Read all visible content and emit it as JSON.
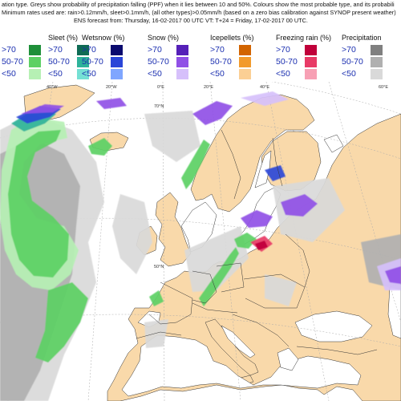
{
  "header": {
    "line1": "ation type. Greys show probability of precipitation falling (PPF) when it lies between 10 and 50%. Colours show the most probable type, and its probabili",
    "line2": "Minimum rates used are: rain>0.12mm/h, sleet>0.1mm/h, (all other types)>0.05mm/h (based on a zero bias calibration against SYNOP present weather)",
    "line3": "ENS forecast from: Thursday, 16-02-2017 00 UTC          VT: T+24 = Friday, 17-02-2017  00 UTC."
  },
  "legend": [
    {
      "title": "",
      "labels": [
        ">70",
        "50-70",
        "<50"
      ],
      "colors": [
        "#1e8f39",
        "#5cd064",
        "#b6f0b4"
      ]
    },
    {
      "title": "Sleet (%)",
      "labels": [
        ">70",
        "50-70",
        "<50"
      ],
      "colors": [
        "#0f6b55",
        "#2fb39a",
        "#75e0d4"
      ]
    },
    {
      "title": "Wetsnow (%)",
      "labels": [
        ">70",
        "50-70",
        "<50"
      ],
      "colors": [
        "#0a0a6e",
        "#2a46d8",
        "#7fa6ff"
      ]
    },
    {
      "title": "Snow (%)",
      "labels": [
        ">70",
        "50-70",
        "<50"
      ],
      "colors": [
        "#5520b8",
        "#9050e6",
        "#d6c0fb"
      ]
    },
    {
      "title": "Icepellets (%)",
      "labels": [
        ">70",
        "50-70",
        "<50"
      ],
      "colors": [
        "#d26400",
        "#f29a2c",
        "#fbcf94"
      ]
    },
    {
      "title": "Freezing rain (%)",
      "labels": [
        ">70",
        "50-70",
        "<50"
      ],
      "colors": [
        "#c0003a",
        "#e83a66",
        "#f7a0b4"
      ]
    },
    {
      "title": "Precipitation",
      "labels": [
        ">70",
        "50-70",
        "<50"
      ],
      "colors": [
        "#808080",
        "#b0b0b0",
        "#d9d9d9"
      ]
    }
  ],
  "map": {
    "colors": {
      "sea": "#ffffff",
      "land": "#f9d9aa",
      "border": "#333333",
      "graticule": "#aaaaaa"
    },
    "lon_labels": [
      "40°W",
      "20°W",
      "0°E",
      "20°E",
      "40°E",
      "60°E"
    ],
    "lat_labels": [
      "70°N",
      "50°N"
    ]
  }
}
